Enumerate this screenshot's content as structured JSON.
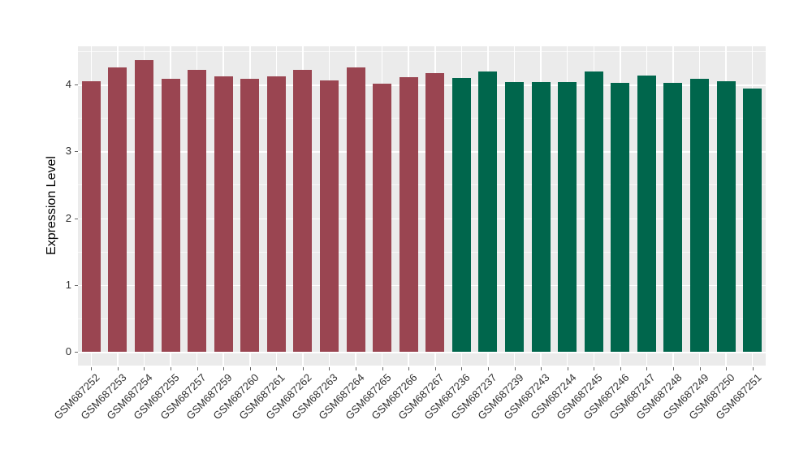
{
  "chart_data": {
    "type": "bar",
    "title": "",
    "xlabel": "",
    "ylabel": "Expression Level",
    "ylim": [
      -0.21,
      4.58
    ],
    "yticks": [
      0,
      1,
      2,
      3,
      4
    ],
    "ytick_labels": [
      "0",
      "1",
      "2",
      "3",
      "4"
    ],
    "y_minor_ticks": [
      0.5,
      1.5,
      2.5,
      3.5,
      4.5
    ],
    "grid": "on",
    "legend": "none",
    "panel_background": "#EBEBEB",
    "gridline_color": "#FFFFFF",
    "colors": {
      "red": "#9A4551",
      "green": "#00664C"
    },
    "categories": [
      "GSM687252",
      "GSM687253",
      "GSM687254",
      "GSM687255",
      "GSM687257",
      "GSM687259",
      "GSM687260",
      "GSM687261",
      "GSM687262",
      "GSM687263",
      "GSM687264",
      "GSM687265",
      "GSM687266",
      "GSM687267",
      "GSM687236",
      "GSM687237",
      "GSM687239",
      "GSM687243",
      "GSM687244",
      "GSM687245",
      "GSM687246",
      "GSM687247",
      "GSM687248",
      "GSM687249",
      "GSM687250",
      "GSM687251"
    ],
    "values": [
      4.05,
      4.25,
      4.36,
      4.09,
      4.22,
      4.12,
      4.08,
      4.12,
      4.22,
      4.06,
      4.26,
      4.01,
      4.11,
      4.17,
      4.1,
      4.19,
      4.04,
      4.04,
      4.04,
      4.19,
      4.02,
      4.13,
      4.02,
      4.09,
      4.05,
      3.94
    ],
    "groups": [
      "red",
      "red",
      "red",
      "red",
      "red",
      "red",
      "red",
      "red",
      "red",
      "red",
      "red",
      "red",
      "red",
      "red",
      "green",
      "green",
      "green",
      "green",
      "green",
      "green",
      "green",
      "green",
      "green",
      "green",
      "green",
      "green"
    ]
  }
}
